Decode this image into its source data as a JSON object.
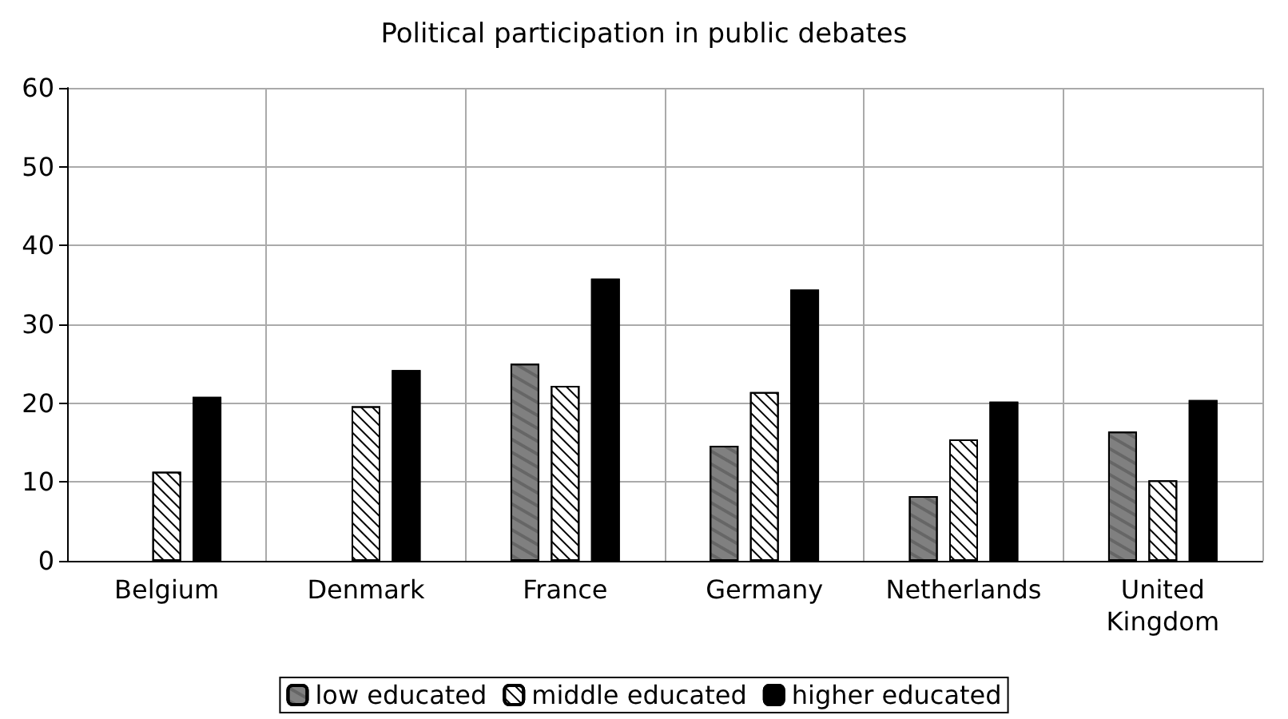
{
  "chart_data": {
    "type": "bar",
    "title": "Political participation in public debates",
    "categories": [
      "Belgium",
      "Denmark",
      "France",
      "Germany",
      "Netherlands",
      "United\nKingdom"
    ],
    "series": [
      {
        "name": "low educated",
        "color": "#808080",
        "values": [
          null,
          null,
          25,
          14.6,
          8.2,
          16.4
        ]
      },
      {
        "name": "middle educated",
        "color": "#ffffff",
        "values": [
          11.3,
          19.6,
          22.2,
          21.4,
          15.4,
          10.2
        ]
      },
      {
        "name": "higher educated",
        "color": "#000000",
        "values": [
          20.8,
          24.2,
          35.8,
          34.4,
          20.2,
          20.4
        ]
      }
    ],
    "ylim": [
      0,
      60
    ],
    "yticks": [
      0,
      10,
      20,
      30,
      40,
      50,
      60
    ],
    "grid": true,
    "legend": "bottom"
  }
}
